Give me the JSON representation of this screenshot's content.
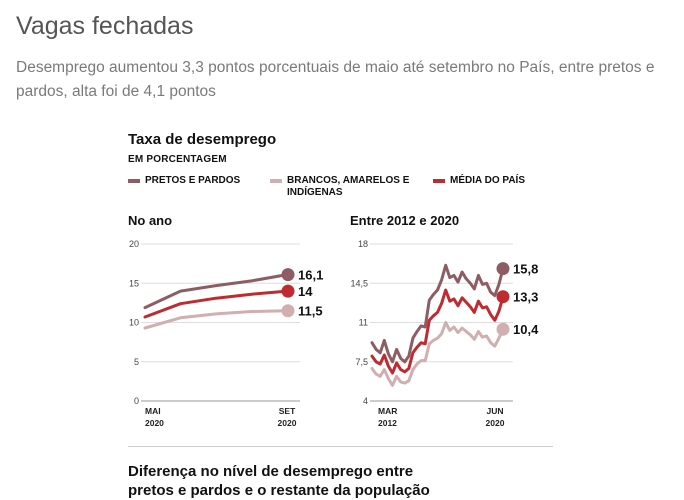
{
  "headline": "Vagas fechadas",
  "subhead": "Desemprego aumentou 3,3 pontos porcentuais de maio até setembro no País, entre pretos e pardos, alta foi de 4,1 pontos",
  "next_section_title": "Diferença no nível de desemprego entre pretos e pardos e o restante da população",
  "chart_data": [
    {
      "type": "line",
      "title": "Taxa de desemprego",
      "subtitle": "EM PORCENTAGEM",
      "panel_title": "No ano",
      "x_labels": [
        [
          "MAI",
          "2020"
        ],
        [
          "SET",
          "2020"
        ]
      ],
      "ylim": [
        0,
        20
      ],
      "yticks": [
        "0",
        "5",
        "10",
        "15",
        "20"
      ],
      "grid": true,
      "series": [
        {
          "name": "PRETOS E PARDOS",
          "color": "#8e5c63",
          "values": [
            11.9,
            14.0,
            14.7,
            15.3,
            16.1
          ],
          "end_label": "16,1"
        },
        {
          "name": "BRANCOS, AMARELOS E INDÍGENAS",
          "color": "#d1aeb0",
          "values": [
            9.3,
            10.6,
            11.1,
            11.4,
            11.5
          ],
          "end_label": "11,5"
        },
        {
          "name": "MÉDIA DO PAÍS",
          "color": "#be2b31",
          "values": [
            10.7,
            12.4,
            13.1,
            13.6,
            14.0
          ],
          "end_label": "14"
        }
      ]
    },
    {
      "type": "line",
      "panel_title": "Entre 2012 e 2020",
      "x_labels": [
        [
          "MAR",
          "2012"
        ],
        [
          "JUN",
          "2020"
        ]
      ],
      "ylim": [
        4,
        18
      ],
      "yticks": [
        "4",
        "7,5",
        "11",
        "14,5",
        "18"
      ],
      "grid": true,
      "series": [
        {
          "name": "PRETOS E PARDOS",
          "color": "#8e5c63",
          "values": [
            9.2,
            8.6,
            8.3,
            9.4,
            8.2,
            7.5,
            8.6,
            7.8,
            7.5,
            8.0,
            9.6,
            10.2,
            10.7,
            10.6,
            13.0,
            13.5,
            13.9,
            14.8,
            16.1,
            15.0,
            15.2,
            14.6,
            15.5,
            14.9,
            14.5,
            14.0,
            15.2,
            14.4,
            14.5,
            13.7,
            13.4,
            14.4,
            15.8
          ],
          "end_label": "15,8"
        },
        {
          "name": "BRANCOS, AMARELOS E INDÍGENAS",
          "color": "#d1aeb0",
          "values": [
            6.9,
            6.4,
            6.2,
            6.8,
            6.0,
            5.4,
            6.2,
            5.7,
            5.6,
            5.8,
            6.8,
            7.3,
            7.6,
            7.6,
            9.1,
            9.4,
            9.6,
            10.0,
            11.0,
            10.3,
            10.6,
            10.1,
            10.5,
            10.2,
            9.9,
            9.5,
            10.2,
            9.7,
            9.8,
            9.2,
            8.9,
            9.6,
            10.4
          ],
          "end_label": "10,4"
        },
        {
          "name": "MÉDIA DO PAÍS",
          "color": "#be2b31",
          "values": [
            8.0,
            7.5,
            7.3,
            8.1,
            7.1,
            6.5,
            7.4,
            6.8,
            6.6,
            6.9,
            8.3,
            8.8,
            9.2,
            9.1,
            11.2,
            11.6,
            11.9,
            12.7,
            13.9,
            12.9,
            13.1,
            12.5,
            13.2,
            12.8,
            12.4,
            11.9,
            12.9,
            12.3,
            12.4,
            11.7,
            11.2,
            12.0,
            13.3
          ],
          "end_label": "13,3"
        }
      ]
    }
  ]
}
